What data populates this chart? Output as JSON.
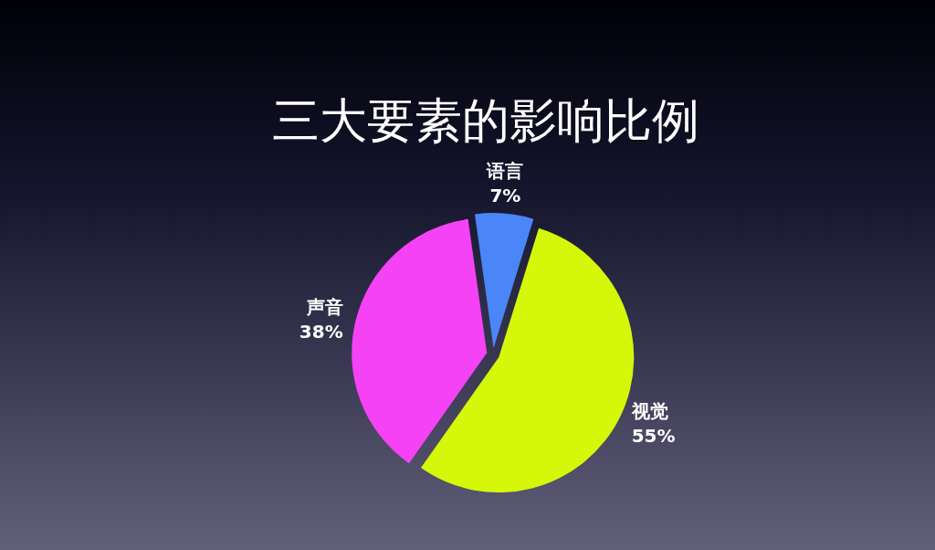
{
  "chart_data": {
    "type": "pie",
    "title": "三大要素的影响比例",
    "categories": [
      "语言",
      "视觉",
      "声音"
    ],
    "values": [
      7,
      55,
      38
    ],
    "value_labels": [
      "7%",
      "55%",
      "38%"
    ],
    "colors": [
      "#4a86f7",
      "#d4f70a",
      "#f542f5"
    ]
  }
}
